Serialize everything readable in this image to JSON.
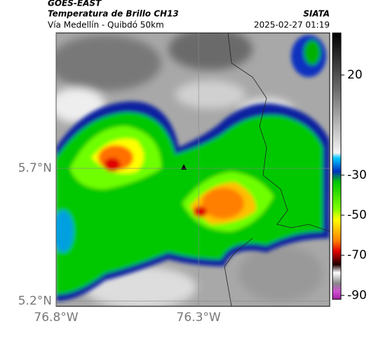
{
  "header": {
    "satellite": "GOES-EAST",
    "product": "Temperatura de Brillo CH13",
    "source": "SIATA",
    "region": "Vía Medellín - Quibdó 50km",
    "timestamp": "2025-02-27 01:19"
  },
  "map": {
    "lat_range": [
      5.18,
      6.21
    ],
    "lon_range": [
      -76.8,
      -75.84
    ],
    "lat_ticks": [
      {
        "value": 5.7,
        "label": "5.7°N"
      },
      {
        "value": 5.2,
        "label": "5.2°N"
      }
    ],
    "lon_ticks": [
      {
        "value": -76.8,
        "label": "76.8°W"
      },
      {
        "value": -76.3,
        "label": "76.3°W"
      }
    ]
  },
  "colorbar": {
    "range": [
      -92,
      41
    ],
    "ticks": [
      20,
      -30,
      -50,
      -70,
      -90
    ]
  }
}
